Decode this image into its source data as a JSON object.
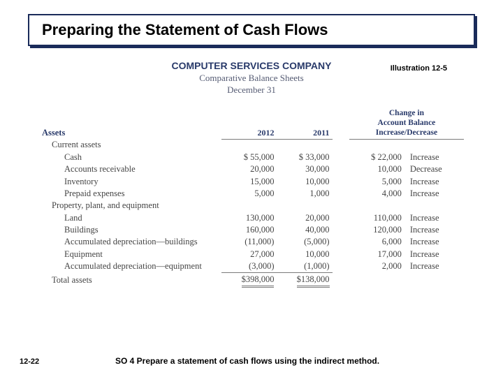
{
  "title": "Preparing the Statement of Cash Flows",
  "illustration_label": "Illustration 12-5",
  "company": "COMPUTER SERVICES COMPANY",
  "subtitle1": "Comparative Balance Sheets",
  "subtitle2": "December 31",
  "headers": {
    "assets": "Assets",
    "y2012": "2012",
    "y2011": "2011",
    "change_l1": "Change in",
    "change_l2": "Account Balance",
    "change_l3": "Increase/Decrease"
  },
  "sections": {
    "current": "Current assets",
    "ppe": "Property, plant, and equipment",
    "total": "Total assets"
  },
  "rows": [
    {
      "label": "Cash",
      "y2012": "$  55,000",
      "y2011": "$  33,000",
      "chg": "$  22,000",
      "dir": "Increase"
    },
    {
      "label": "Accounts receivable",
      "y2012": "20,000",
      "y2011": "30,000",
      "chg": "10,000",
      "dir": "Decrease"
    },
    {
      "label": "Inventory",
      "y2012": "15,000",
      "y2011": "10,000",
      "chg": "5,000",
      "dir": "Increase"
    },
    {
      "label": "Prepaid expenses",
      "y2012": "5,000",
      "y2011": "1,000",
      "chg": "4,000",
      "dir": "Increase"
    }
  ],
  "ppe_rows": [
    {
      "label": "Land",
      "y2012": "130,000",
      "y2011": "20,000",
      "chg": "110,000",
      "dir": "Increase"
    },
    {
      "label": "Buildings",
      "y2012": "160,000",
      "y2011": "40,000",
      "chg": "120,000",
      "dir": "Increase"
    },
    {
      "label": "Accumulated depreciation—buildings",
      "y2012": "(11,000)",
      "y2011": "(5,000)",
      "chg": "6,000",
      "dir": "Increase"
    },
    {
      "label": "Equipment",
      "y2012": "27,000",
      "y2011": "10,000",
      "chg": "17,000",
      "dir": "Increase"
    },
    {
      "label": "Accumulated depreciation—equipment",
      "y2012": "(3,000)",
      "y2011": "(1,000)",
      "chg": "2,000",
      "dir": "Increase"
    }
  ],
  "totals": {
    "y2012": "$398,000",
    "y2011": "$138,000"
  },
  "page_num": "12-22",
  "so_text": "SO 4  Prepare a statement of cash flows using the indirect method."
}
